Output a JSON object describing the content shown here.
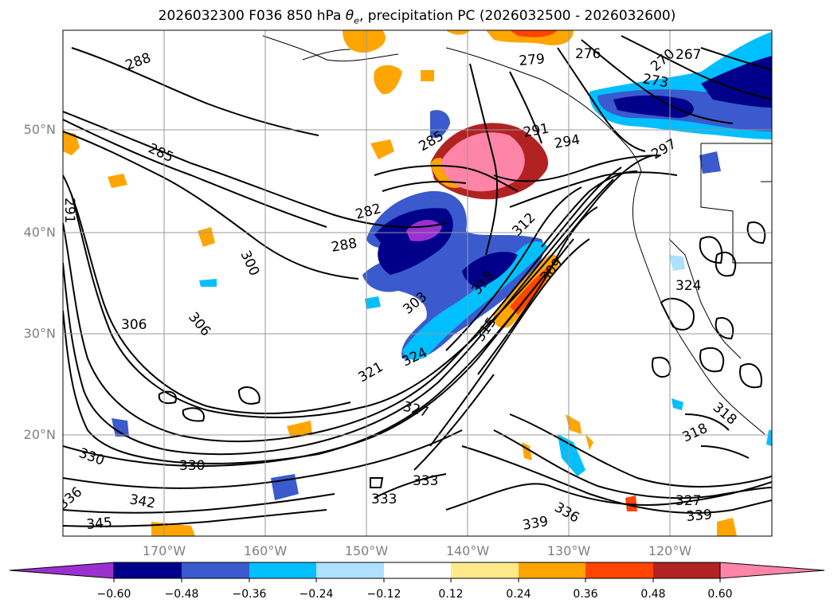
{
  "title": {
    "prefix": "2026032300 F036 850 hPa ",
    "theta_symbol": "θ",
    "theta_sub": "e",
    "suffix": ", precipitation PC (2026032500 - 2026032600)"
  },
  "axes": {
    "lat_labels": [
      "50°N",
      "40°N",
      "30°N",
      "20°N"
    ],
    "lon_labels": [
      "170°W",
      "160°W",
      "150°W",
      "140°W",
      "130°W",
      "120°W"
    ]
  },
  "colorbar": {
    "ticks": [
      "−0.60",
      "−0.48",
      "−0.36",
      "−0.24",
      "−0.12",
      "0.12",
      "0.24",
      "0.36",
      "0.48",
      "0.60"
    ],
    "colors": [
      "#9b30d0",
      "#00008b",
      "#3a5acd",
      "#00bfff",
      "#aee0ff",
      "#ffffff",
      "#ffe98a",
      "#ffa500",
      "#ff4500",
      "#b22222",
      "#ff85a8",
      "#ff85a8"
    ]
  },
  "contour_labels": [
    "288",
    "285",
    "282",
    "288",
    "291",
    "294",
    "279",
    "276",
    "273",
    "270",
    "267",
    "297",
    "300",
    "303",
    "306",
    "306",
    "309",
    "312",
    "318",
    "321",
    "324",
    "324",
    "327",
    "327",
    "330",
    "330",
    "333",
    "333",
    "336",
    "336",
    "339",
    "339",
    "342",
    "345",
    "291",
    "318",
    "318",
    "315",
    "285"
  ],
  "colors": {
    "contour": "#000000",
    "grid": "#999999",
    "axis_label": "#808080"
  }
}
